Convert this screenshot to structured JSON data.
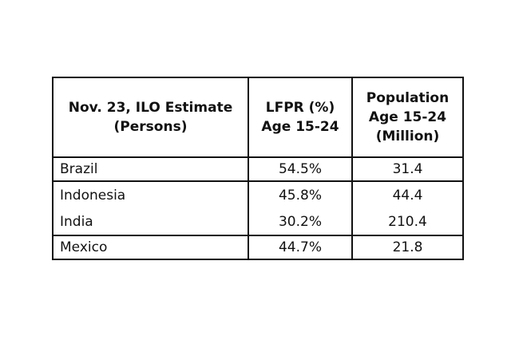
{
  "table": {
    "header": [
      [
        "Nov. 23, ILO Estimate",
        "(Persons)"
      ],
      [
        "LFPR (%)",
        "Age 15-24"
      ],
      [
        "Population",
        "Age 15-24",
        "(Million)"
      ]
    ],
    "rows": [
      [
        "Brazil",
        "54.5%",
        "31.4"
      ],
      [
        "Indonesia",
        "45.8%",
        "44.4"
      ],
      [
        "India",
        "30.2%",
        "210.4"
      ],
      [
        "Mexico",
        "44.7%",
        "21.8"
      ]
    ]
  }
}
